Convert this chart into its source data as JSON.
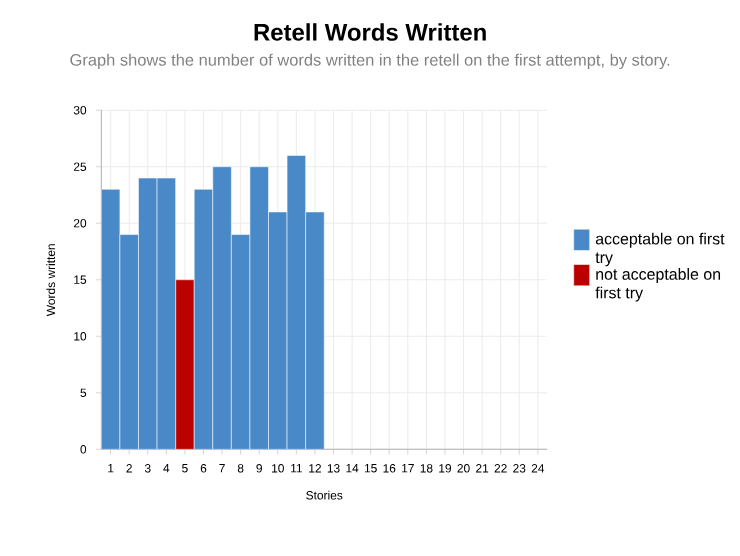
{
  "chart_data": {
    "type": "bar",
    "title": "Retell Words Written",
    "subtitle": "Graph shows the number of words written in the retell on the first attempt, by story.",
    "xlabel": "Stories",
    "ylabel": "Words written",
    "categories": [
      "1",
      "2",
      "3",
      "4",
      "5",
      "6",
      "7",
      "8",
      "9",
      "10",
      "11",
      "12",
      "13",
      "14",
      "15",
      "16",
      "17",
      "18",
      "19",
      "20",
      "21",
      "22",
      "23",
      "24"
    ],
    "stacked": true,
    "series": [
      {
        "name": "acceptable on first try",
        "color": "#4a89c8",
        "values": [
          23,
          19,
          24,
          24,
          null,
          23,
          25,
          19,
          25,
          21,
          26,
          21,
          null,
          null,
          null,
          null,
          null,
          null,
          null,
          null,
          null,
          null,
          null,
          null
        ]
      },
      {
        "name": "not acceptable on first try",
        "color": "#bb0000",
        "values": [
          null,
          null,
          null,
          null,
          15,
          null,
          null,
          null,
          null,
          null,
          null,
          null,
          null,
          null,
          null,
          null,
          null,
          null,
          null,
          null,
          null,
          null,
          null,
          null
        ]
      }
    ],
    "ylim": [
      0,
      30
    ],
    "yticks": [
      0,
      5,
      10,
      15,
      20,
      25,
      30
    ],
    "grid": true,
    "legend": "right"
  }
}
